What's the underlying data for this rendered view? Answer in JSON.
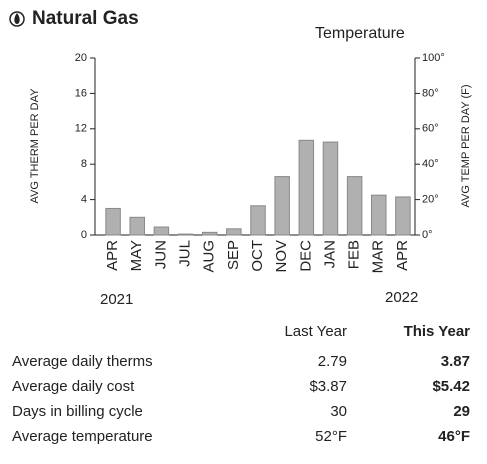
{
  "chart_data": {
    "type": "bar",
    "title": "Natural Gas",
    "subtitle": "Temperature",
    "y_label": "AVG THERM PER DAY",
    "y2_label": "AVG TEMP PER DAY (F)",
    "categories": [
      "APR",
      "MAY",
      "JUN",
      "JUL",
      "AUG",
      "SEP",
      "OCT",
      "NOV",
      "DEC",
      "JAN",
      "FEB",
      "MAR",
      "APR"
    ],
    "values": [
      3.0,
      2.0,
      0.9,
      0.1,
      0.3,
      0.7,
      3.3,
      6.6,
      10.7,
      10.5,
      6.6,
      4.5,
      4.3
    ],
    "color": "#b0b0b0",
    "ylim": [
      0,
      20
    ],
    "yticks": [
      0,
      4,
      8,
      12,
      16,
      20
    ],
    "y2lim": [
      0,
      100
    ],
    "y2ticks": [
      {
        "value": 0,
        "label": "0°"
      },
      {
        "value": 20,
        "label": "20°"
      },
      {
        "value": 40,
        "label": "40°"
      },
      {
        "value": 60,
        "label": "60°"
      },
      {
        "value": 80,
        "label": "80°"
      },
      {
        "value": 100,
        "label": "100°"
      }
    ],
    "year_labels": [
      "2021",
      "2022"
    ]
  },
  "table": {
    "columns": [
      "Last Year",
      "This Year"
    ],
    "rows": [
      [
        "Average daily therms",
        "2.79",
        "3.87"
      ],
      [
        "Average daily cost",
        "$3.87",
        "$5.42"
      ],
      [
        "Days in billing cycle",
        "30",
        "29"
      ],
      [
        "Average temperature",
        "52°F",
        "46°F"
      ]
    ]
  }
}
